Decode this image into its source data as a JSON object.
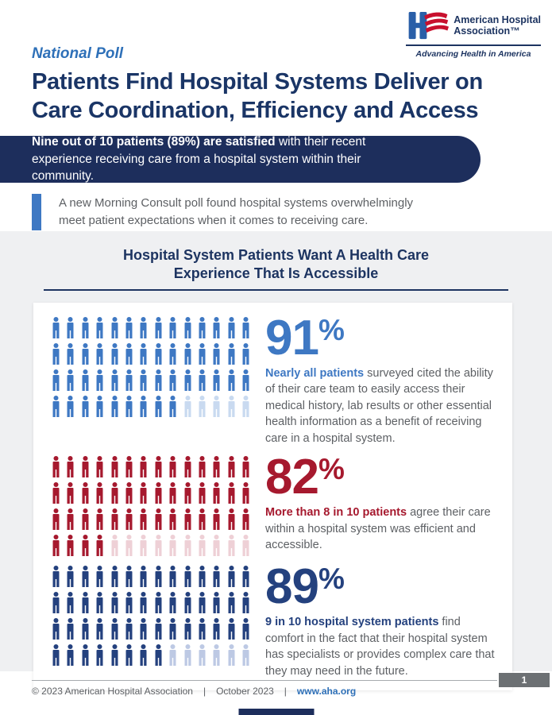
{
  "logo": {
    "org_line1": "American Hospital",
    "org_line2": "Association™",
    "tagline": "Advancing Health in America"
  },
  "page": {
    "kicker": "National Poll",
    "title_line1": "Patients Find Hospital Systems Deliver on",
    "title_line2": "Care Coordination, Efficiency and Access"
  },
  "banner": {
    "bold_text": "Nine out of 10 patients (89%) are satisfied",
    "rest_text": " with their recent experience receiving care from a hospital system within their community."
  },
  "quote": {
    "line1": "A new Morning Consult poll found hospital systems overwhelmingly",
    "line2": "meet patient expectations when it comes to receiving care."
  },
  "section": {
    "title_line1": "Hospital System Patients Want A Health Care",
    "title_line2": "Experience That Is Accessible"
  },
  "stats": [
    {
      "value": "91",
      "pct": "%",
      "color": "#3e78c3",
      "lead": "Nearly all patients",
      "rest": " surveyed cited the ability of their care team to easily access their medical history, lab results or other essential health information as a benefit of receiving care in a hospital system."
    },
    {
      "value": "82",
      "pct": "%",
      "color": "#a6192e",
      "lead": "More than 8 in 10 patients",
      "rest": " agree their care within a hospital system was efficient and accessible."
    },
    {
      "value": "89",
      "pct": "%",
      "color": "#24417e",
      "lead": "9 in 10 hospital system patients",
      "rest": " find comfort in the fact that their hospital system has specialists or provides complex care that they may need in the future."
    }
  ],
  "chart_data": [
    {
      "type": "pictogram",
      "label": "91% of patients cite easy access to medical information as a benefit",
      "value": 91,
      "unit": "%",
      "total_icons": 56,
      "filled_icons": 51,
      "columns": 14,
      "filled_color": "#3e78c3",
      "faded_color": "#c9daf0"
    },
    {
      "type": "pictogram",
      "label": "82% agree care within a hospital system was efficient and accessible",
      "value": 82,
      "unit": "%",
      "total_icons": 56,
      "filled_icons": 46,
      "columns": 14,
      "filled_color": "#a6192e",
      "faded_color": "#eed0d6"
    },
    {
      "type": "pictogram",
      "label": "89% find comfort in specialists and complex care availability",
      "value": 89,
      "unit": "%",
      "total_icons": 56,
      "filled_icons": 50,
      "columns": 14,
      "filled_color": "#24417e",
      "faded_color": "#bdc9e4"
    }
  ],
  "footer": {
    "copyright": "© 2023 American Hospital Association",
    "separator1": "|",
    "date": "October 2023",
    "separator2": "|",
    "link": "www.aha.org",
    "page_number": "1"
  },
  "colors": {
    "navy": "#1d2e5c",
    "headline_navy": "#1a3566",
    "kicker_blue": "#2e70b8",
    "stat_blue": "#3e78c3",
    "stat_red": "#a6192e",
    "stat_navy": "#24417e",
    "body_gray": "#5d6064",
    "section_bg": "#eff0f2"
  }
}
